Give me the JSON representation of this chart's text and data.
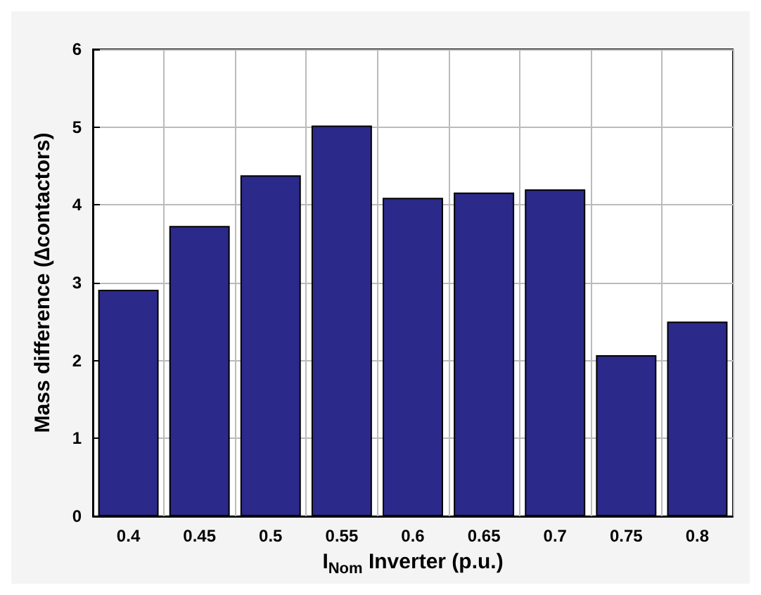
{
  "chart_data": {
    "type": "bar",
    "xlabel": "I$_{Nom}$ Inverter (p.u.)",
    "ylabel": "Mass difference (∆contactors)",
    "categories": [
      "0.4",
      "0.45",
      "0.5",
      "0.55",
      "0.6",
      "0.65",
      "0.7",
      "0.75",
      "0.8"
    ],
    "values": [
      2.91,
      3.73,
      4.38,
      5.02,
      4.09,
      4.16,
      4.2,
      2.07,
      2.5
    ],
    "color": "#2b2a8a",
    "ylim": [
      0,
      6
    ],
    "yticks": [
      0,
      1,
      2,
      3,
      4,
      5,
      6
    ],
    "grid": true
  }
}
